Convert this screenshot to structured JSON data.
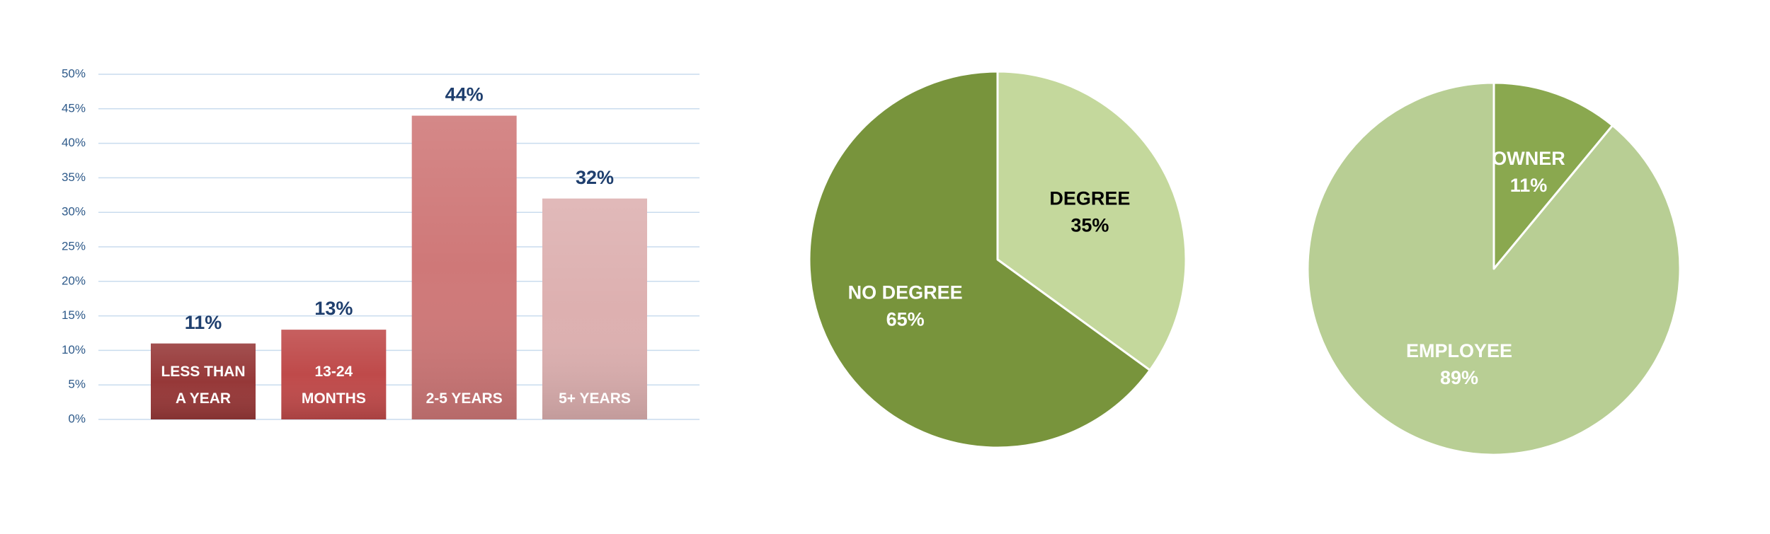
{
  "chart_data": [
    {
      "type": "bar",
      "categories": [
        "LESS THAN A YEAR",
        "13-24 MONTHS",
        "2-5 YEARS",
        "5+ YEARS"
      ],
      "values": [
        11,
        13,
        44,
        32
      ],
      "value_labels": [
        "11%",
        "13%",
        "44%",
        "32%"
      ],
      "colors": [
        "#963838",
        "#bf4a4a",
        "#cf7878",
        "#ddb0b0"
      ],
      "ylim": [
        0,
        50
      ],
      "yticks": [
        {
          "value": 0,
          "label": "0%"
        },
        {
          "value": 5,
          "label": "5%"
        },
        {
          "value": 10,
          "label": "10%"
        },
        {
          "value": 15,
          "label": "15%"
        },
        {
          "value": 20,
          "label": "20%"
        },
        {
          "value": 25,
          "label": "25%"
        },
        {
          "value": 30,
          "label": "30%"
        },
        {
          "value": 35,
          "label": "35%"
        },
        {
          "value": 40,
          "label": "40%"
        },
        {
          "value": 45,
          "label": "45%"
        },
        {
          "value": 50,
          "label": "50%"
        }
      ],
      "grid": true
    },
    {
      "type": "pie",
      "categories": [
        "DEGREE",
        "NO DEGREE"
      ],
      "values": [
        35,
        65
      ],
      "value_labels": [
        "35%",
        "65%"
      ],
      "colors": [
        "#c4d89c",
        "#78943c"
      ],
      "label_colors": [
        "#000000",
        "#ffffff"
      ]
    },
    {
      "type": "pie",
      "categories": [
        "OWNER",
        "EMPLOYEE"
      ],
      "values": [
        11,
        89
      ],
      "value_labels": [
        "11%",
        "89%"
      ],
      "colors": [
        "#8aa84f",
        "#b8ce94"
      ],
      "label_colors": [
        "#ffffff",
        "#ffffff"
      ]
    }
  ]
}
